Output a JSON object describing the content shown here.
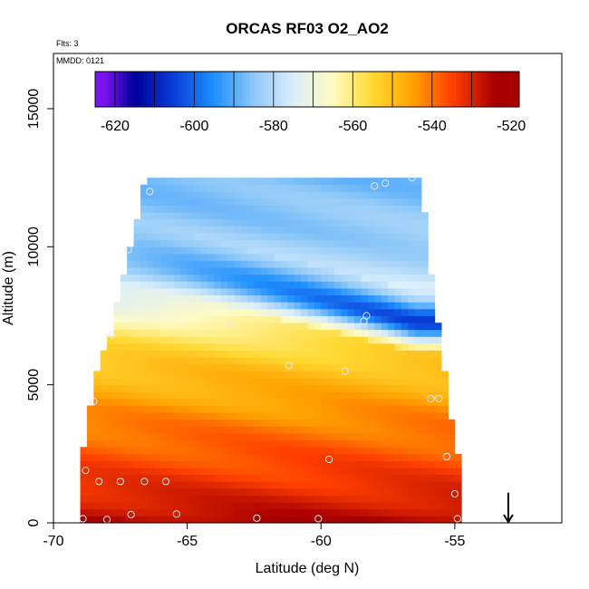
{
  "chart_data": {
    "type": "heatmap",
    "title": "ORCAS RF03 O2_AO2",
    "notes": [
      "Flts: 3",
      "MMDD: 0121"
    ],
    "xlabel": "Latitude (deg N)",
    "ylabel": "Altitude (m)",
    "xlim": [
      -70,
      -51
    ],
    "ylim": [
      0,
      17000
    ],
    "x_ticks": [
      -70,
      -65,
      -60,
      -55
    ],
    "y_ticks": [
      0,
      5000,
      10000,
      15000
    ],
    "x_tick_labels": [
      "-70",
      "-65",
      "-60",
      "-55"
    ],
    "y_tick_labels": [
      "0",
      "5000",
      "10000",
      "15000"
    ],
    "grid": false,
    "colorbar": {
      "placement": "top inside plot",
      "min": -625,
      "max": -518,
      "ticks": [
        -620,
        -600,
        -580,
        -560,
        -540,
        -520
      ],
      "tick_labels": [
        "-620",
        "-600",
        "-580",
        "-560",
        "-540",
        "-520"
      ],
      "levels": [
        {
          "from": -625,
          "to": -620,
          "color": "#7a14ee"
        },
        {
          "from": -620,
          "to": -610,
          "color": "#00009a"
        },
        {
          "from": -610,
          "to": -600,
          "color": "#0a3fd8"
        },
        {
          "from": -600,
          "to": -590,
          "color": "#1e90ff"
        },
        {
          "from": -590,
          "to": -580,
          "color": "#8ec8f8"
        },
        {
          "from": -580,
          "to": -570,
          "color": "#dbeefa"
        },
        {
          "from": -570,
          "to": -560,
          "color": "#fffbc2"
        },
        {
          "from": -560,
          "to": -550,
          "color": "#ffd933"
        },
        {
          "from": -550,
          "to": -540,
          "color": "#ffa200"
        },
        {
          "from": -540,
          "to": -530,
          "color": "#ff4000"
        },
        {
          "from": -530,
          "to": -518,
          "color": "#a80000"
        }
      ]
    },
    "field": {
      "profile": [
        {
          "alt": 0,
          "value": -524
        },
        {
          "alt": 500,
          "value": -528
        },
        {
          "alt": 1500,
          "value": -533
        },
        {
          "alt": 2500,
          "value": -537
        },
        {
          "alt": 3500,
          "value": -541
        },
        {
          "alt": 4500,
          "value": -546
        },
        {
          "alt": 5500,
          "value": -550
        },
        {
          "alt": 6500,
          "value": -556
        },
        {
          "alt": 7300,
          "value": -563
        },
        {
          "alt": 8000,
          "value": -572
        },
        {
          "alt": 9000,
          "value": -580
        },
        {
          "alt": 10500,
          "value": -584
        },
        {
          "alt": 12400,
          "value": -587
        }
      ],
      "dry_layer": {
        "from": {
          "lat": -67,
          "alt": 9800,
          "value": -587
        },
        "to": {
          "lat": -56.5,
          "alt": 7300,
          "value": -606
        },
        "half_width": 500
      },
      "left_edge": [
        {
          "alt": 0,
          "lat": -69
        },
        {
          "alt": 2000,
          "lat": -69
        },
        {
          "alt": 3300,
          "lat": -68.8
        },
        {
          "alt": 4300,
          "lat": -68.6
        },
        {
          "alt": 5800,
          "lat": -68.3
        },
        {
          "alt": 7000,
          "lat": -67.8
        },
        {
          "alt": 8200,
          "lat": -67.6
        },
        {
          "alt": 9800,
          "lat": -67.2
        },
        {
          "alt": 11200,
          "lat": -66.8
        },
        {
          "alt": 12300,
          "lat": -66.6
        }
      ],
      "right_edge": [
        {
          "alt": 0,
          "lat": -54.8
        },
        {
          "alt": 2500,
          "lat": -55
        },
        {
          "alt": 4500,
          "lat": -55.4
        },
        {
          "alt": 6500,
          "lat": -55.6
        },
        {
          "alt": 8000,
          "lat": -55.9
        },
        {
          "alt": 11000,
          "lat": -56.2
        },
        {
          "alt": 12500,
          "lat": -56.5
        }
      ]
    },
    "samples": [
      [
        -68.9,
        150
      ],
      [
        -68.0,
        120
      ],
      [
        -67.1,
        300
      ],
      [
        -65.4,
        320
      ],
      [
        -62.4,
        170
      ],
      [
        -60.1,
        150
      ],
      [
        -54.9,
        150
      ],
      [
        -68.8,
        1900
      ],
      [
        -68.3,
        1500
      ],
      [
        -67.5,
        1500
      ],
      [
        -66.6,
        1500
      ],
      [
        -65.8,
        1500
      ],
      [
        -59.7,
        2300
      ],
      [
        -55.0,
        1050
      ],
      [
        -55.3,
        2400
      ],
      [
        -68.5,
        4400
      ],
      [
        -61.2,
        5700
      ],
      [
        -59.1,
        5500
      ],
      [
        -55.9,
        4500
      ],
      [
        -55.6,
        4500
      ],
      [
        -67.8,
        6800
      ],
      [
        -63.4,
        7200
      ],
      [
        -58.4,
        7300
      ],
      [
        -58.3,
        7500
      ],
      [
        -67.2,
        9900
      ],
      [
        -66.4,
        12000
      ],
      [
        -58.0,
        12200
      ],
      [
        -57.6,
        12300
      ],
      [
        -56.6,
        12500
      ]
    ],
    "marker": {
      "type": "arrow-down",
      "lat": -53,
      "alt_top": 700,
      "alt_bottom": 0
    }
  }
}
